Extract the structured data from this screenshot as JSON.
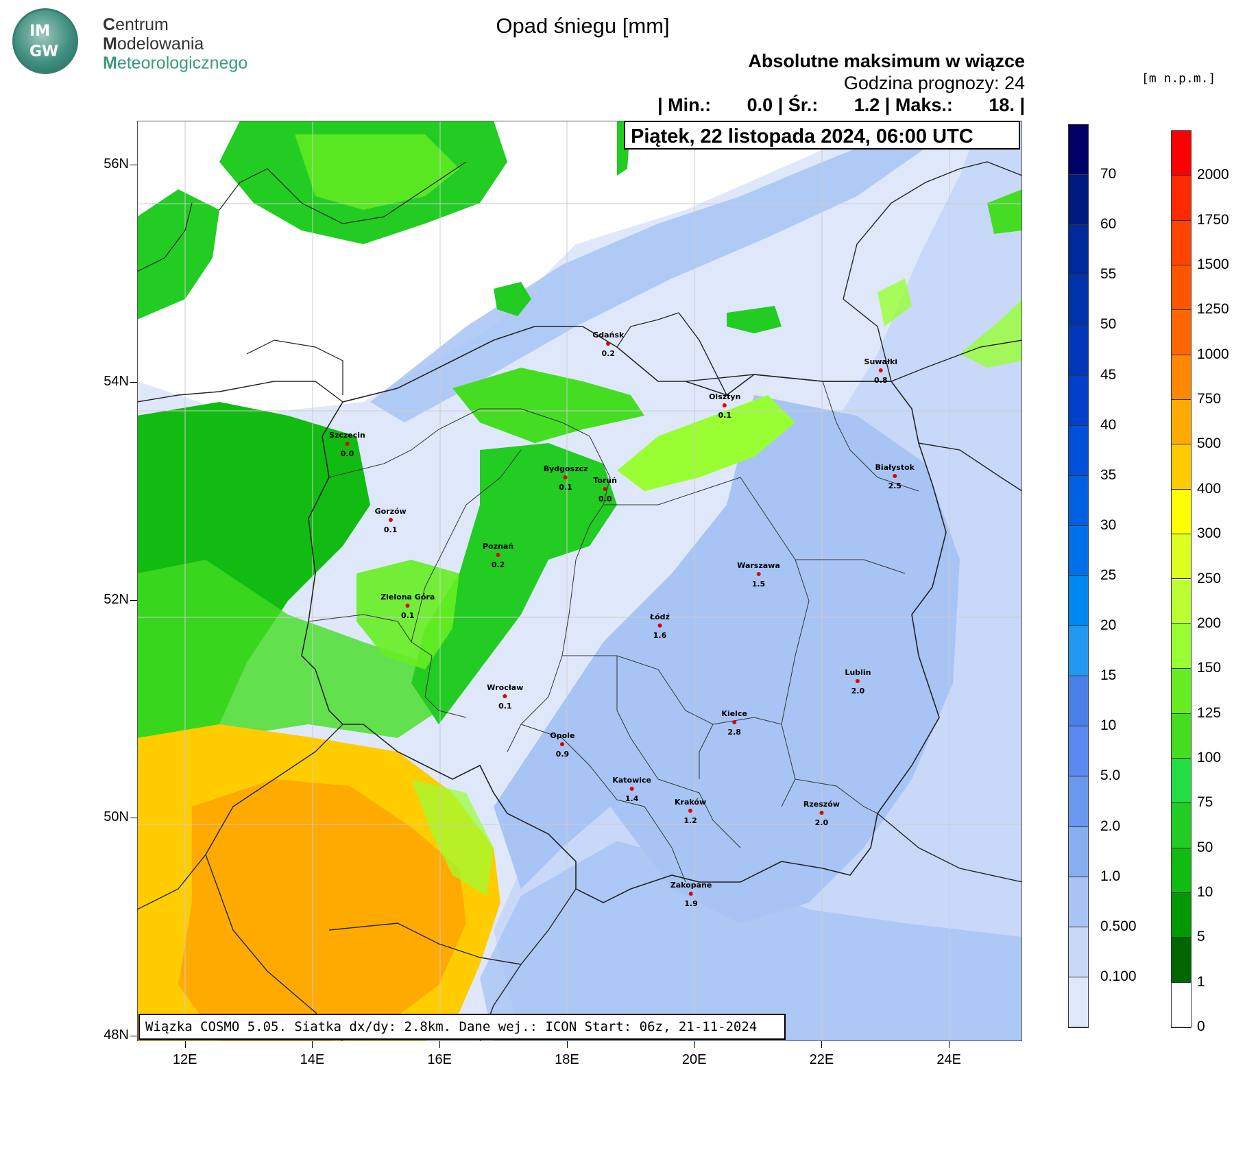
{
  "logo": {
    "badge_top": "IM",
    "badge_bottom": "GW",
    "line1_initial": "C",
    "line1_rest": "entrum",
    "line2_initial": "M",
    "line2_rest": "odelowania",
    "line3_initial": "M",
    "line3_rest": "eteorologicznego"
  },
  "title": "Opad śniegu [mm]",
  "header": {
    "line1": "Absolutne maksimum w wiązce",
    "line2": "Godzina prognozy: 24",
    "line3": "| Min.:       0.0 | Śr.:       1.2 | Maks.:       18. |"
  },
  "date": "Piątek, 22 listopada 2024, 06:00 UTC",
  "terrain_unit": "[m  n.p.m.]",
  "info": "Wiązka COSMO 5.05. Siatka dx/dy: 2.8km. Dane wej.: ICON Start: 06z, 21-11-2024",
  "axes": {
    "lat": [
      "56N",
      "54N",
      "52N",
      "50N",
      "48N"
    ],
    "lon": [
      "12E",
      "14E",
      "16E",
      "18E",
      "20E",
      "22E",
      "24E"
    ]
  },
  "snow_scale": {
    "labels": [
      "70",
      "60",
      "55",
      "50",
      "45",
      "40",
      "35",
      "30",
      "25",
      "20",
      "15",
      "10",
      "5.0",
      "2.0",
      "1.0",
      "0.500",
      "0.100"
    ],
    "colors": [
      "#000066",
      "#001a80",
      "#002a99",
      "#0033a8",
      "#0038b8",
      "#0040c8",
      "#0050d8",
      "#0060e0",
      "#0070e8",
      "#0088f0",
      "#2299ee",
      "#4a7fe8",
      "#5a8aee",
      "#6a98ee",
      "#88aef0",
      "#a8c4f4",
      "#c8d8f8",
      "#dfe8fb"
    ]
  },
  "terrain_scale": {
    "labels": [
      "2000",
      "1750",
      "1500",
      "1250",
      "1000",
      "750",
      "500",
      "400",
      "300",
      "250",
      "200",
      "150",
      "125",
      "100",
      "75",
      "50",
      "10",
      "5",
      "1",
      "0"
    ],
    "colors": [
      "#ff0000",
      "#ff2a00",
      "#ff4400",
      "#ff5500",
      "#ff6600",
      "#ff8800",
      "#ffaa00",
      "#ffcc00",
      "#ffff00",
      "#ddff22",
      "#bbff33",
      "#99ff33",
      "#66ee22",
      "#44dd22",
      "#22dd44",
      "#22cc22",
      "#11bb11",
      "#009900",
      "#006600",
      "#ffffff"
    ]
  },
  "cities": [
    {
      "name": "Gdańsk",
      "value": "0.2",
      "lon": 18.65,
      "lat": 54.35
    },
    {
      "name": "Suwałki",
      "value": "0.8",
      "lon": 22.93,
      "lat": 54.1
    },
    {
      "name": "Olsztyn",
      "value": "0.1",
      "lon": 20.48,
      "lat": 53.78
    },
    {
      "name": "Szczecin",
      "value": "0.0",
      "lon": 14.55,
      "lat": 53.43
    },
    {
      "name": "Bydgoszcz",
      "value": "0.1",
      "lon": 17.98,
      "lat": 53.12
    },
    {
      "name": "Toruń",
      "value": "0.0",
      "lon": 18.6,
      "lat": 53.01
    },
    {
      "name": "Białystok",
      "value": "2.5",
      "lon": 23.15,
      "lat": 53.13
    },
    {
      "name": "Gorzów",
      "value": "0.1",
      "lon": 15.23,
      "lat": 52.73
    },
    {
      "name": "Poznań",
      "value": "0.2",
      "lon": 16.92,
      "lat": 52.41
    },
    {
      "name": "Warszawa",
      "value": "1.5",
      "lon": 21.01,
      "lat": 52.23
    },
    {
      "name": "Zielona Góra",
      "value": "0.1",
      "lon": 15.5,
      "lat": 51.94
    },
    {
      "name": "Łódź",
      "value": "1.6",
      "lon": 19.46,
      "lat": 51.76
    },
    {
      "name": "Lublin",
      "value": "2.0",
      "lon": 22.57,
      "lat": 51.25
    },
    {
      "name": "Wrocław",
      "value": "0.1",
      "lon": 17.03,
      "lat": 51.11
    },
    {
      "name": "Kielce",
      "value": "2.8",
      "lon": 20.63,
      "lat": 50.87
    },
    {
      "name": "Opole",
      "value": "0.9",
      "lon": 17.93,
      "lat": 50.67
    },
    {
      "name": "Katowice",
      "value": "1.4",
      "lon": 19.02,
      "lat": 50.26
    },
    {
      "name": "Kraków",
      "value": "1.2",
      "lon": 19.94,
      "lat": 50.06
    },
    {
      "name": "Rzeszów",
      "value": "2.0",
      "lon": 22.0,
      "lat": 50.04
    },
    {
      "name": "Zakopane",
      "value": "1.9",
      "lon": 19.95,
      "lat": 49.3
    }
  ],
  "colors": {
    "snow_light": "#dfe8fb",
    "snow_mid": "#c8d8f8",
    "snow_blue": "#a8c4f4",
    "terrain_green_dark": "#11bb11",
    "terrain_green": "#22cc22",
    "terrain_green_light": "#66ee22",
    "terrain_lime": "#99ff33",
    "terrain_yellow": "#ffcc00",
    "terrain_orange": "#ffaa00"
  }
}
